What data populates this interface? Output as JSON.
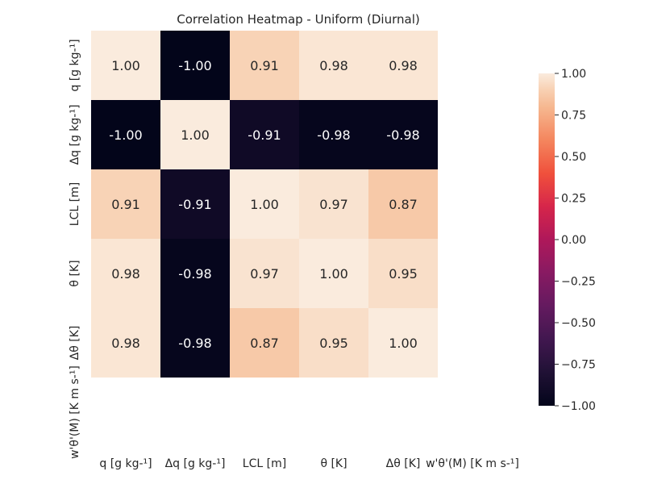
{
  "chart_data": {
    "type": "heatmap",
    "title": "Correlation Heatmap - Uniform (Diurnal)",
    "x_labels": [
      "q [g kg-¹]",
      "Δq [g kg-¹]",
      "LCL [m]",
      "θ [K]",
      "Δθ [K]",
      "w'θ'(M) [K m s-¹]"
    ],
    "y_labels": [
      "q [g kg-¹]",
      "Δq [g kg-¹]",
      "LCL [m]",
      "θ [K]",
      "Δθ [K]",
      "w'θ'(M) [K m s-¹]"
    ],
    "matrix": [
      [
        1.0,
        -1.0,
        0.91,
        0.98,
        0.98,
        null
      ],
      [
        -1.0,
        1.0,
        -0.91,
        -0.98,
        -0.98,
        null
      ],
      [
        0.91,
        -0.91,
        1.0,
        0.97,
        0.87,
        null
      ],
      [
        0.98,
        -0.98,
        0.97,
        1.0,
        0.95,
        null
      ],
      [
        0.98,
        -0.98,
        0.87,
        0.95,
        1.0,
        null
      ],
      [
        null,
        null,
        null,
        null,
        null,
        null
      ]
    ],
    "cell_labels": [
      [
        "1.00",
        "-1.00",
        "0.91",
        "0.98",
        "0.98",
        ""
      ],
      [
        "-1.00",
        "1.00",
        "-0.91",
        "-0.98",
        "-0.98",
        ""
      ],
      [
        "0.91",
        "-0.91",
        "1.00",
        "0.97",
        "0.87",
        ""
      ],
      [
        "0.98",
        "-0.98",
        "0.97",
        "1.00",
        "0.95",
        ""
      ],
      [
        "0.98",
        "-0.98",
        "0.87",
        "0.95",
        "1.00",
        ""
      ],
      [
        "",
        "",
        "",
        "",
        "",
        ""
      ]
    ],
    "vmin": -1.0,
    "vmax": 1.0,
    "colormap": "rocket",
    "colorbar_ticks": [
      1.0,
      0.75,
      0.5,
      0.25,
      0.0,
      -0.25,
      -0.5,
      -0.75,
      -1.0
    ],
    "colorbar_tick_labels": [
      "1.00",
      "0.75",
      "0.50",
      "0.25",
      "0.00",
      "−0.25",
      "−0.50",
      "−0.75",
      "−1.00"
    ],
    "colors": {
      "background": "#ffffff",
      "text_dark": "#262626",
      "text_light": "#ffffff"
    }
  }
}
